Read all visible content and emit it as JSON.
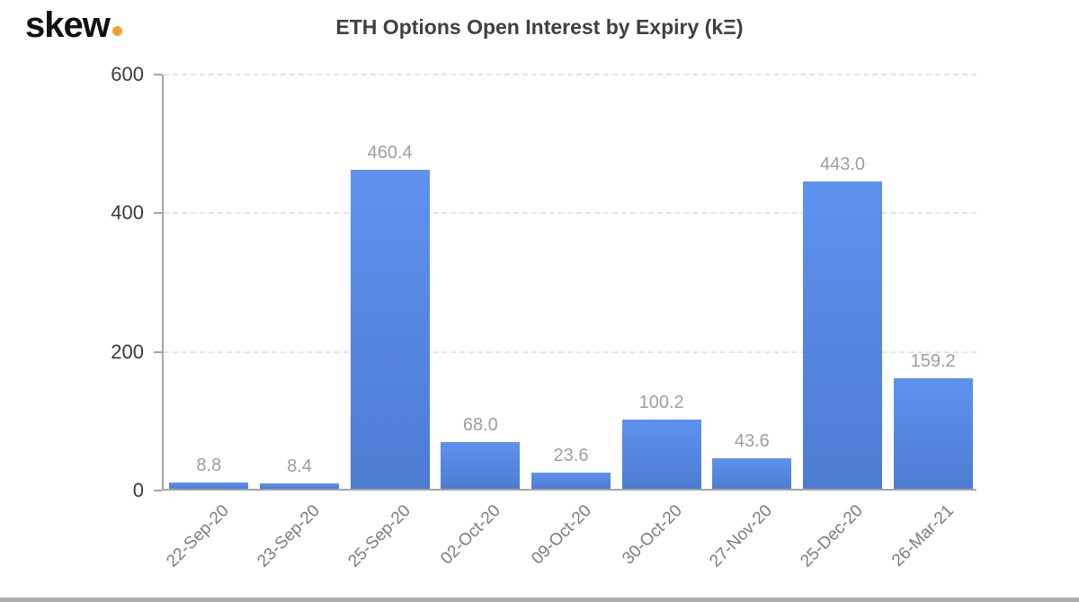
{
  "logo": {
    "text": "skew",
    "dot_color": "#f0a22e"
  },
  "chart_data": {
    "type": "bar",
    "title": "ETH Options Open Interest by Expiry (kΞ)",
    "categories": [
      "22-Sep-20",
      "23-Sep-20",
      "25-Sep-20",
      "02-Oct-20",
      "09-Oct-20",
      "30-Oct-20",
      "27-Nov-20",
      "25-Dec-20",
      "26-Mar-21"
    ],
    "values": [
      8.8,
      8.4,
      460.4,
      68.0,
      23.6,
      100.2,
      43.6,
      443.0,
      159.2
    ],
    "value_labels": [
      "8.8",
      "8.4",
      "460.4",
      "68.0",
      "23.6",
      "100.2",
      "43.6",
      "443.0",
      "159.2"
    ],
    "xlabel": "",
    "ylabel": "",
    "y_ticks": [
      0,
      200,
      400,
      600
    ],
    "ylim": [
      0,
      600
    ],
    "grid": "horizontal-dashed",
    "legend": "none",
    "bar_color_top": "#5e92ee",
    "bar_color_bottom": "#4d7cd2",
    "value_label_color": "#9e9e9e",
    "axis_color": "#a6a6a6"
  }
}
